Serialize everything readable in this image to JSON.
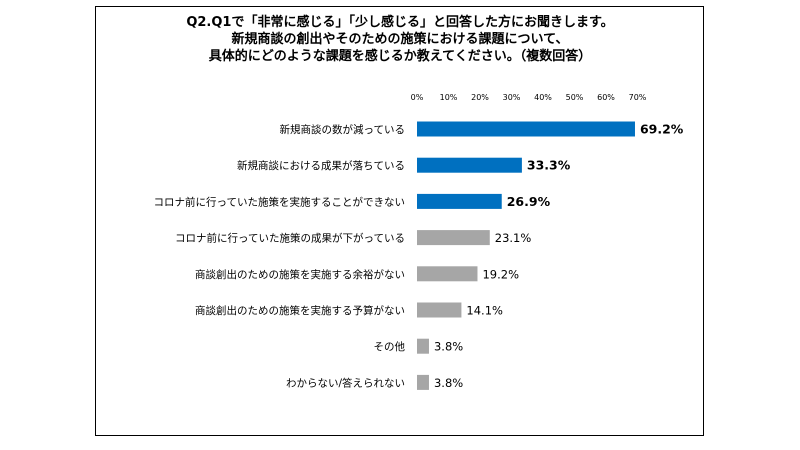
{
  "question": {
    "lines": [
      "Q2.Q1で「非常に感じる」「少し感じる」と回答した方にお聞きします。",
      "新規商談の創出やそのための施策における課題について、",
      "具体的にどのような課題を感じるか教えてください。（複数回答）"
    ]
  },
  "chart_data": {
    "type": "bar",
    "orientation": "horizontal",
    "categories": [
      "新規商談の数が減っている",
      "新規商談における成果が落ちている",
      "コロナ前に行っていた施策を実施することができない",
      "コロナ前に行っていた施策の成果が下がっている",
      "商談創出のための施策を実施する余裕がない",
      "商談創出のための施策を実施する予算がない",
      "その他",
      "わからない/答えられない"
    ],
    "values": [
      69.2,
      33.3,
      26.9,
      23.1,
      19.2,
      14.1,
      3.8,
      3.8
    ],
    "value_labels": [
      "69.2%",
      "33.3%",
      "26.9%",
      "23.1%",
      "19.2%",
      "14.1%",
      "3.8%",
      "3.8%"
    ],
    "highlighted": [
      true,
      true,
      true,
      false,
      false,
      false,
      false,
      false
    ],
    "xticks": [
      "0%",
      "10%",
      "20%",
      "30%",
      "40%",
      "50%",
      "60%",
      "70%"
    ],
    "xlim": [
      0,
      70
    ],
    "colors": {
      "highlight": "#0070c0",
      "other": "#a6a6a6"
    },
    "grid": false
  }
}
